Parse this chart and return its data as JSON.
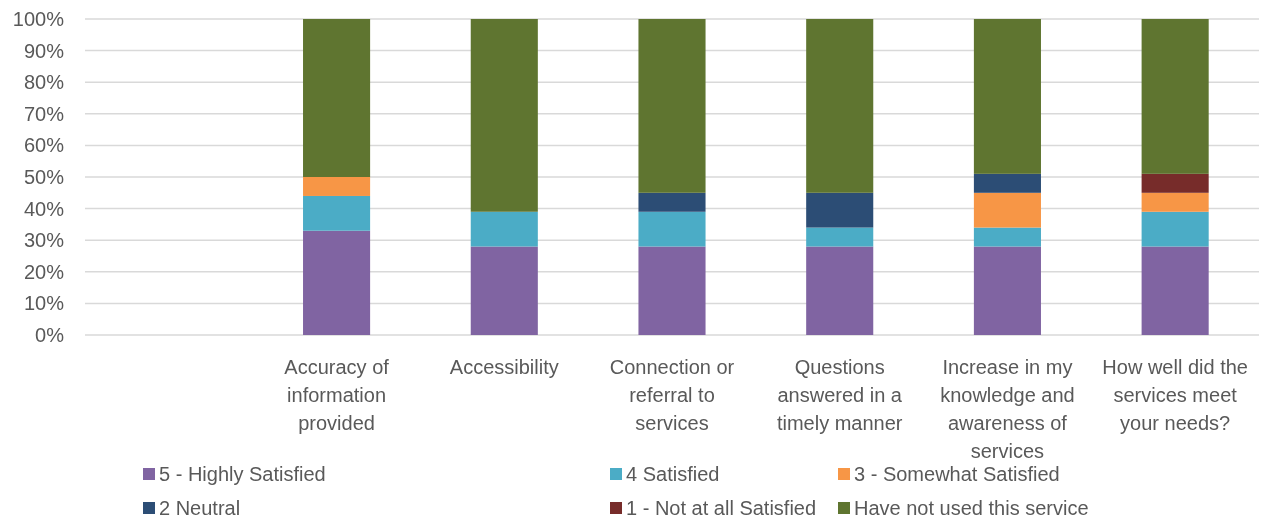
{
  "chart_data": {
    "type": "bar",
    "stacked": true,
    "categories": [
      null,
      "Accuracy of information provided",
      "Accessibility",
      "Connection or referral to services",
      "Questions answered in a timely manner",
      "Increase in my knowledge and awareness of services",
      "How well did the services meet your needs?"
    ],
    "series": [
      {
        "name": "5 - Highly Satisfied",
        "color": "#8064a2",
        "values": [
          null,
          33,
          28,
          28,
          28,
          28,
          28
        ]
      },
      {
        "name": "4 Satisfied",
        "color": "#4bacc6",
        "values": [
          null,
          11,
          11,
          11,
          6,
          6,
          11
        ]
      },
      {
        "name": "3 - Somewhat Satisfied",
        "color": "#f79646",
        "values": [
          null,
          6,
          0,
          0,
          0,
          11,
          6
        ]
      },
      {
        "name": "2 Neutral",
        "color": "#2c4d75",
        "values": [
          null,
          0,
          0,
          6,
          11,
          6,
          0
        ]
      },
      {
        "name": "1 - Not at all Satisfied",
        "color": "#772c2a",
        "values": [
          null,
          0,
          0,
          0,
          0,
          0,
          6
        ]
      },
      {
        "name": "Have not used this service",
        "color": "#5f7530",
        "values": [
          null,
          50,
          61,
          55,
          55,
          49,
          49
        ]
      }
    ],
    "ylim": [
      0,
      100
    ],
    "yticks": [
      {
        "value": 0,
        "label": "0%"
      },
      {
        "value": 10,
        "label": "10%"
      },
      {
        "value": 20,
        "label": "20%"
      },
      {
        "value": 30,
        "label": "30%"
      },
      {
        "value": 40,
        "label": "40%"
      },
      {
        "value": 50,
        "label": "50%"
      },
      {
        "value": 60,
        "label": "60%"
      },
      {
        "value": 70,
        "label": "70%"
      },
      {
        "value": 80,
        "label": "80%"
      },
      {
        "value": 90,
        "label": "90%"
      },
      {
        "value": 100,
        "label": "100%"
      }
    ],
    "grid": "y",
    "legend": "bottom"
  }
}
